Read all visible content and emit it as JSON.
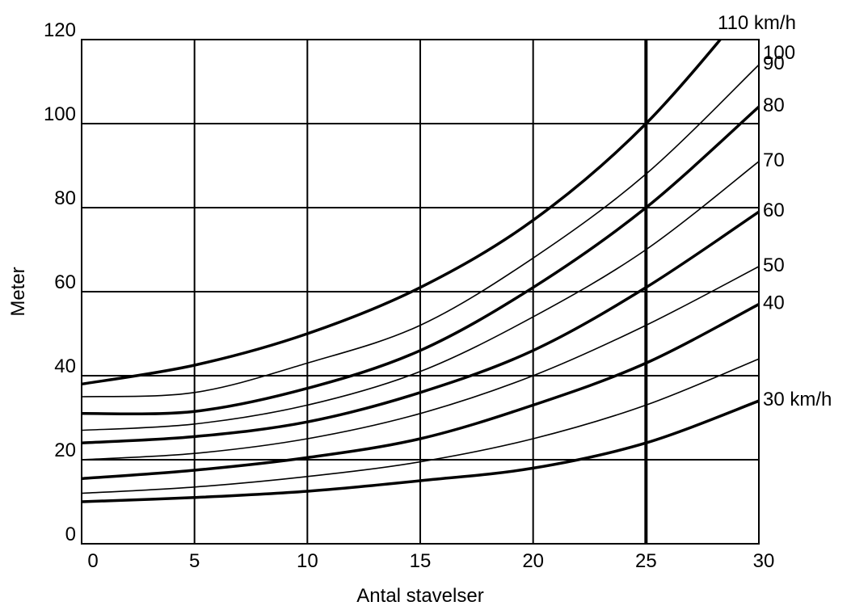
{
  "chart_data": {
    "type": "line",
    "title": "",
    "xlabel": "Antal stavelser",
    "ylabel": "Meter",
    "xlim": [
      0,
      30
    ],
    "ylim": [
      0,
      120
    ],
    "x_ticks": [
      0,
      5,
      10,
      15,
      20,
      25,
      30
    ],
    "y_ticks": [
      0,
      20,
      40,
      60,
      80,
      100,
      120
    ],
    "x_tick_labels": [
      "0",
      "5",
      "10",
      "15",
      "20",
      "25",
      "30"
    ],
    "y_tick_labels": [
      "0",
      "20",
      "40",
      "60",
      "80",
      "100",
      "120"
    ],
    "grid": true,
    "legend": "right-end labels",
    "x": [
      0,
      5,
      10,
      15,
      20,
      25,
      30
    ],
    "series": [
      {
        "name": "30 km/h",
        "weight": "thick",
        "values": [
          10,
          11,
          12.5,
          15,
          18,
          24,
          34
        ]
      },
      {
        "name": "",
        "weight": "thin",
        "values": [
          12,
          13.5,
          16,
          19.5,
          25,
          33,
          44
        ]
      },
      {
        "name": "40",
        "weight": "thick",
        "values": [
          15.5,
          17.5,
          20.5,
          25,
          33,
          43,
          57
        ]
      },
      {
        "name": "50",
        "weight": "thin",
        "values": [
          20,
          21.5,
          25,
          31,
          40,
          52,
          66
        ]
      },
      {
        "name": "60",
        "weight": "thick",
        "values": [
          24,
          25.5,
          29,
          36,
          46,
          61,
          79
        ]
      },
      {
        "name": "70",
        "weight": "thin",
        "values": [
          27,
          28.5,
          33,
          41,
          54,
          70,
          91
        ]
      },
      {
        "name": "80",
        "weight": "thick",
        "values": [
          31,
          31.5,
          37,
          46,
          61,
          80,
          104
        ]
      },
      {
        "name": "90",
        "weight": "thin",
        "values": [
          35,
          36,
          43,
          52,
          68,
          88,
          114
        ]
      },
      {
        "name": "100",
        "weight": "thick",
        "values": [
          38,
          42.5,
          50,
          61,
          77,
          100,
          131
        ]
      }
    ],
    "extra_label": "110 km/h"
  }
}
